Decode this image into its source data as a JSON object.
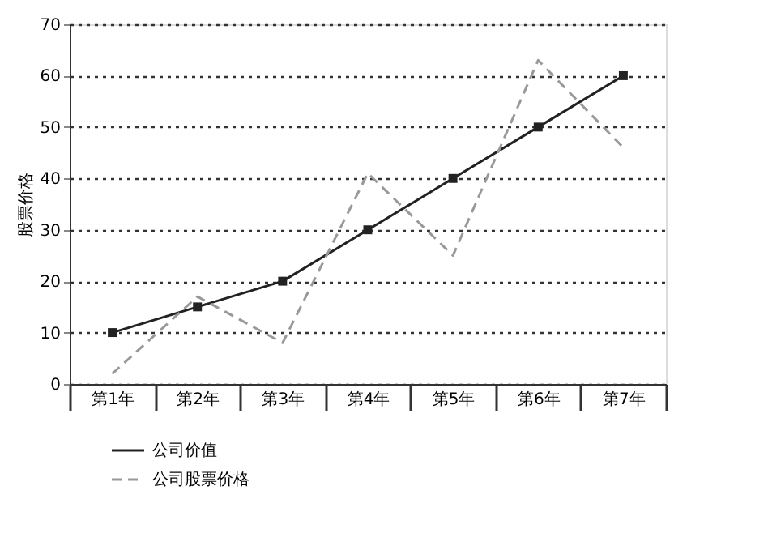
{
  "chart_data": {
    "type": "line",
    "ylabel": "股票价格",
    "categories": [
      "第1年",
      "第2年",
      "第3年",
      "第4年",
      "第5年",
      "第6年",
      "第7年"
    ],
    "series": [
      {
        "name": "公司价值",
        "color": "#222222",
        "values": [
          10,
          15,
          20,
          30,
          40,
          50,
          60
        ],
        "marker": "square",
        "line_style": "solid"
      },
      {
        "name": "公司股票价格",
        "color": "#999999",
        "values": [
          2,
          17,
          8,
          41,
          25,
          63,
          46
        ],
        "marker": "none",
        "line_style": "dashed"
      }
    ],
    "ylim": [
      0,
      70
    ],
    "yticks": [
      0,
      10,
      20,
      30,
      40,
      50,
      60,
      70
    ],
    "grid": "y",
    "legend": "bottom left"
  }
}
